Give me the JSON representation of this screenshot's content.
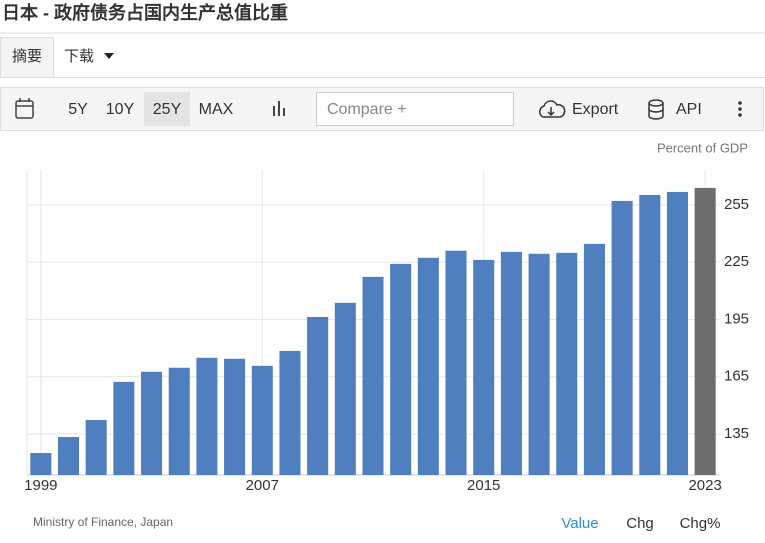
{
  "ui": {
    "page_title": "日本 - 政府债务占国内生产总值比重",
    "tabs": [
      "摘要",
      "下载"
    ],
    "ranges": [
      "5Y",
      "10Y",
      "25Y",
      "MAX"
    ],
    "compare": "Compare +",
    "export": "Export",
    "api": "API",
    "source": "Ministry of Finance, Japan",
    "footer_tabs": [
      "Value",
      "Chg",
      "Chg%"
    ]
  },
  "chart_data": {
    "type": "bar",
    "y_axis_label": "Percent of GDP",
    "categories": [
      "1999",
      null,
      null,
      null,
      null,
      null,
      null,
      null,
      "2007",
      null,
      null,
      null,
      null,
      null,
      null,
      null,
      "2015",
      null,
      null,
      null,
      null,
      null,
      null,
      null,
      "2023"
    ],
    "values": [
      125,
      133.4,
      142.3,
      162.3,
      167.6,
      169.7,
      174.9,
      174.4,
      170.7,
      178.5,
      196.3,
      203.7,
      217.3,
      224.1,
      227.3,
      231,
      226.2,
      230.4,
      229.4,
      229.9,
      234.6,
      257.1,
      260.2,
      261.8,
      263.9
    ],
    "colors": [
      "#4f7fbf",
      "#4f7fbf",
      "#4f7fbf",
      "#4f7fbf",
      "#4f7fbf",
      "#4f7fbf",
      "#4f7fbf",
      "#4f7fbf",
      "#4f7fbf",
      "#4f7fbf",
      "#4f7fbf",
      "#4f7fbf",
      "#4f7fbf",
      "#4f7fbf",
      "#4f7fbf",
      "#4f7fbf",
      "#4f7fbf",
      "#4f7fbf",
      "#4f7fbf",
      "#4f7fbf",
      "#4f7fbf",
      "#4f7fbf",
      "#4f7fbf",
      "#4f7fbf",
      "#6d6d6d"
    ],
    "ylim": [
      113.5,
      273.3
    ],
    "yticks": [
      135,
      165,
      195,
      225,
      255
    ],
    "grid": true
  }
}
